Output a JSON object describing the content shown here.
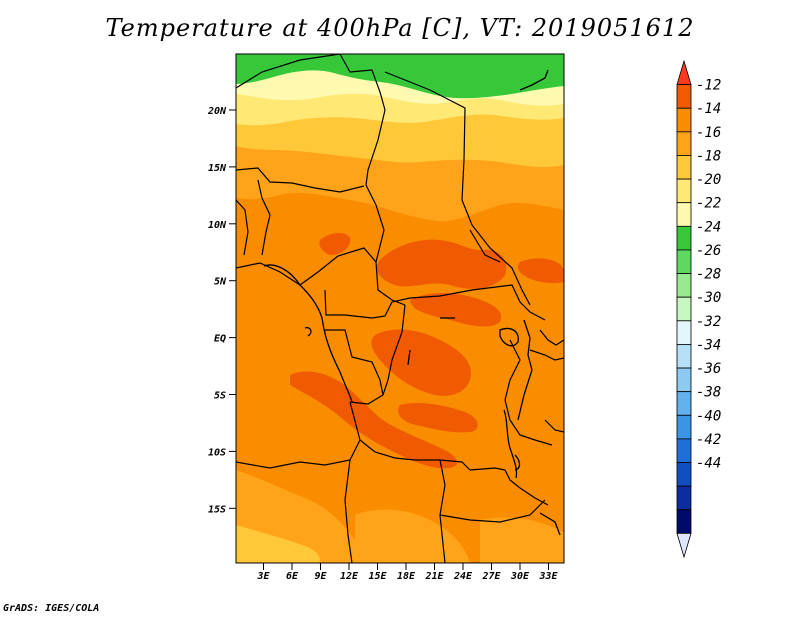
{
  "title": "Temperature at 400hPa [C], VT: 2019051612",
  "credit": "GrADS: IGES/COLA",
  "map": {
    "region": "Central Africa",
    "variable": "Temperature",
    "level": "400hPa",
    "units": "C",
    "valid_time": "2019051612",
    "lat_ticks": [
      "20N",
      "15N",
      "10N",
      "5N",
      "EQ",
      "5S",
      "10S",
      "15S"
    ],
    "lon_ticks": [
      "3E",
      "6E",
      "9E",
      "12E",
      "15E",
      "18E",
      "21E",
      "24E",
      "27E",
      "30E",
      "33E"
    ]
  },
  "colorbar": {
    "labels": [
      "-12",
      "-14",
      "-16",
      "-18",
      "-20",
      "-22",
      "-24",
      "-26",
      "-28",
      "-30",
      "-32",
      "-34",
      "-36",
      "-38",
      "-40",
      "-42",
      "-44"
    ],
    "colors": [
      "#ff3a1f",
      "#f05a00",
      "#fa8c00",
      "#ffa41a",
      "#ffc838",
      "#ffe873",
      "#fffab0",
      "#36c839",
      "#5fd860",
      "#97ea8d",
      "#c8f8c2",
      "#e3f6fc",
      "#b5e0f7",
      "#8ccaf1",
      "#61b2ec",
      "#3c94e4",
      "#1f6fd8",
      "#0f4fc0",
      "#0b2d9e",
      "#000a6b",
      "#e0e6ff"
    ]
  }
}
